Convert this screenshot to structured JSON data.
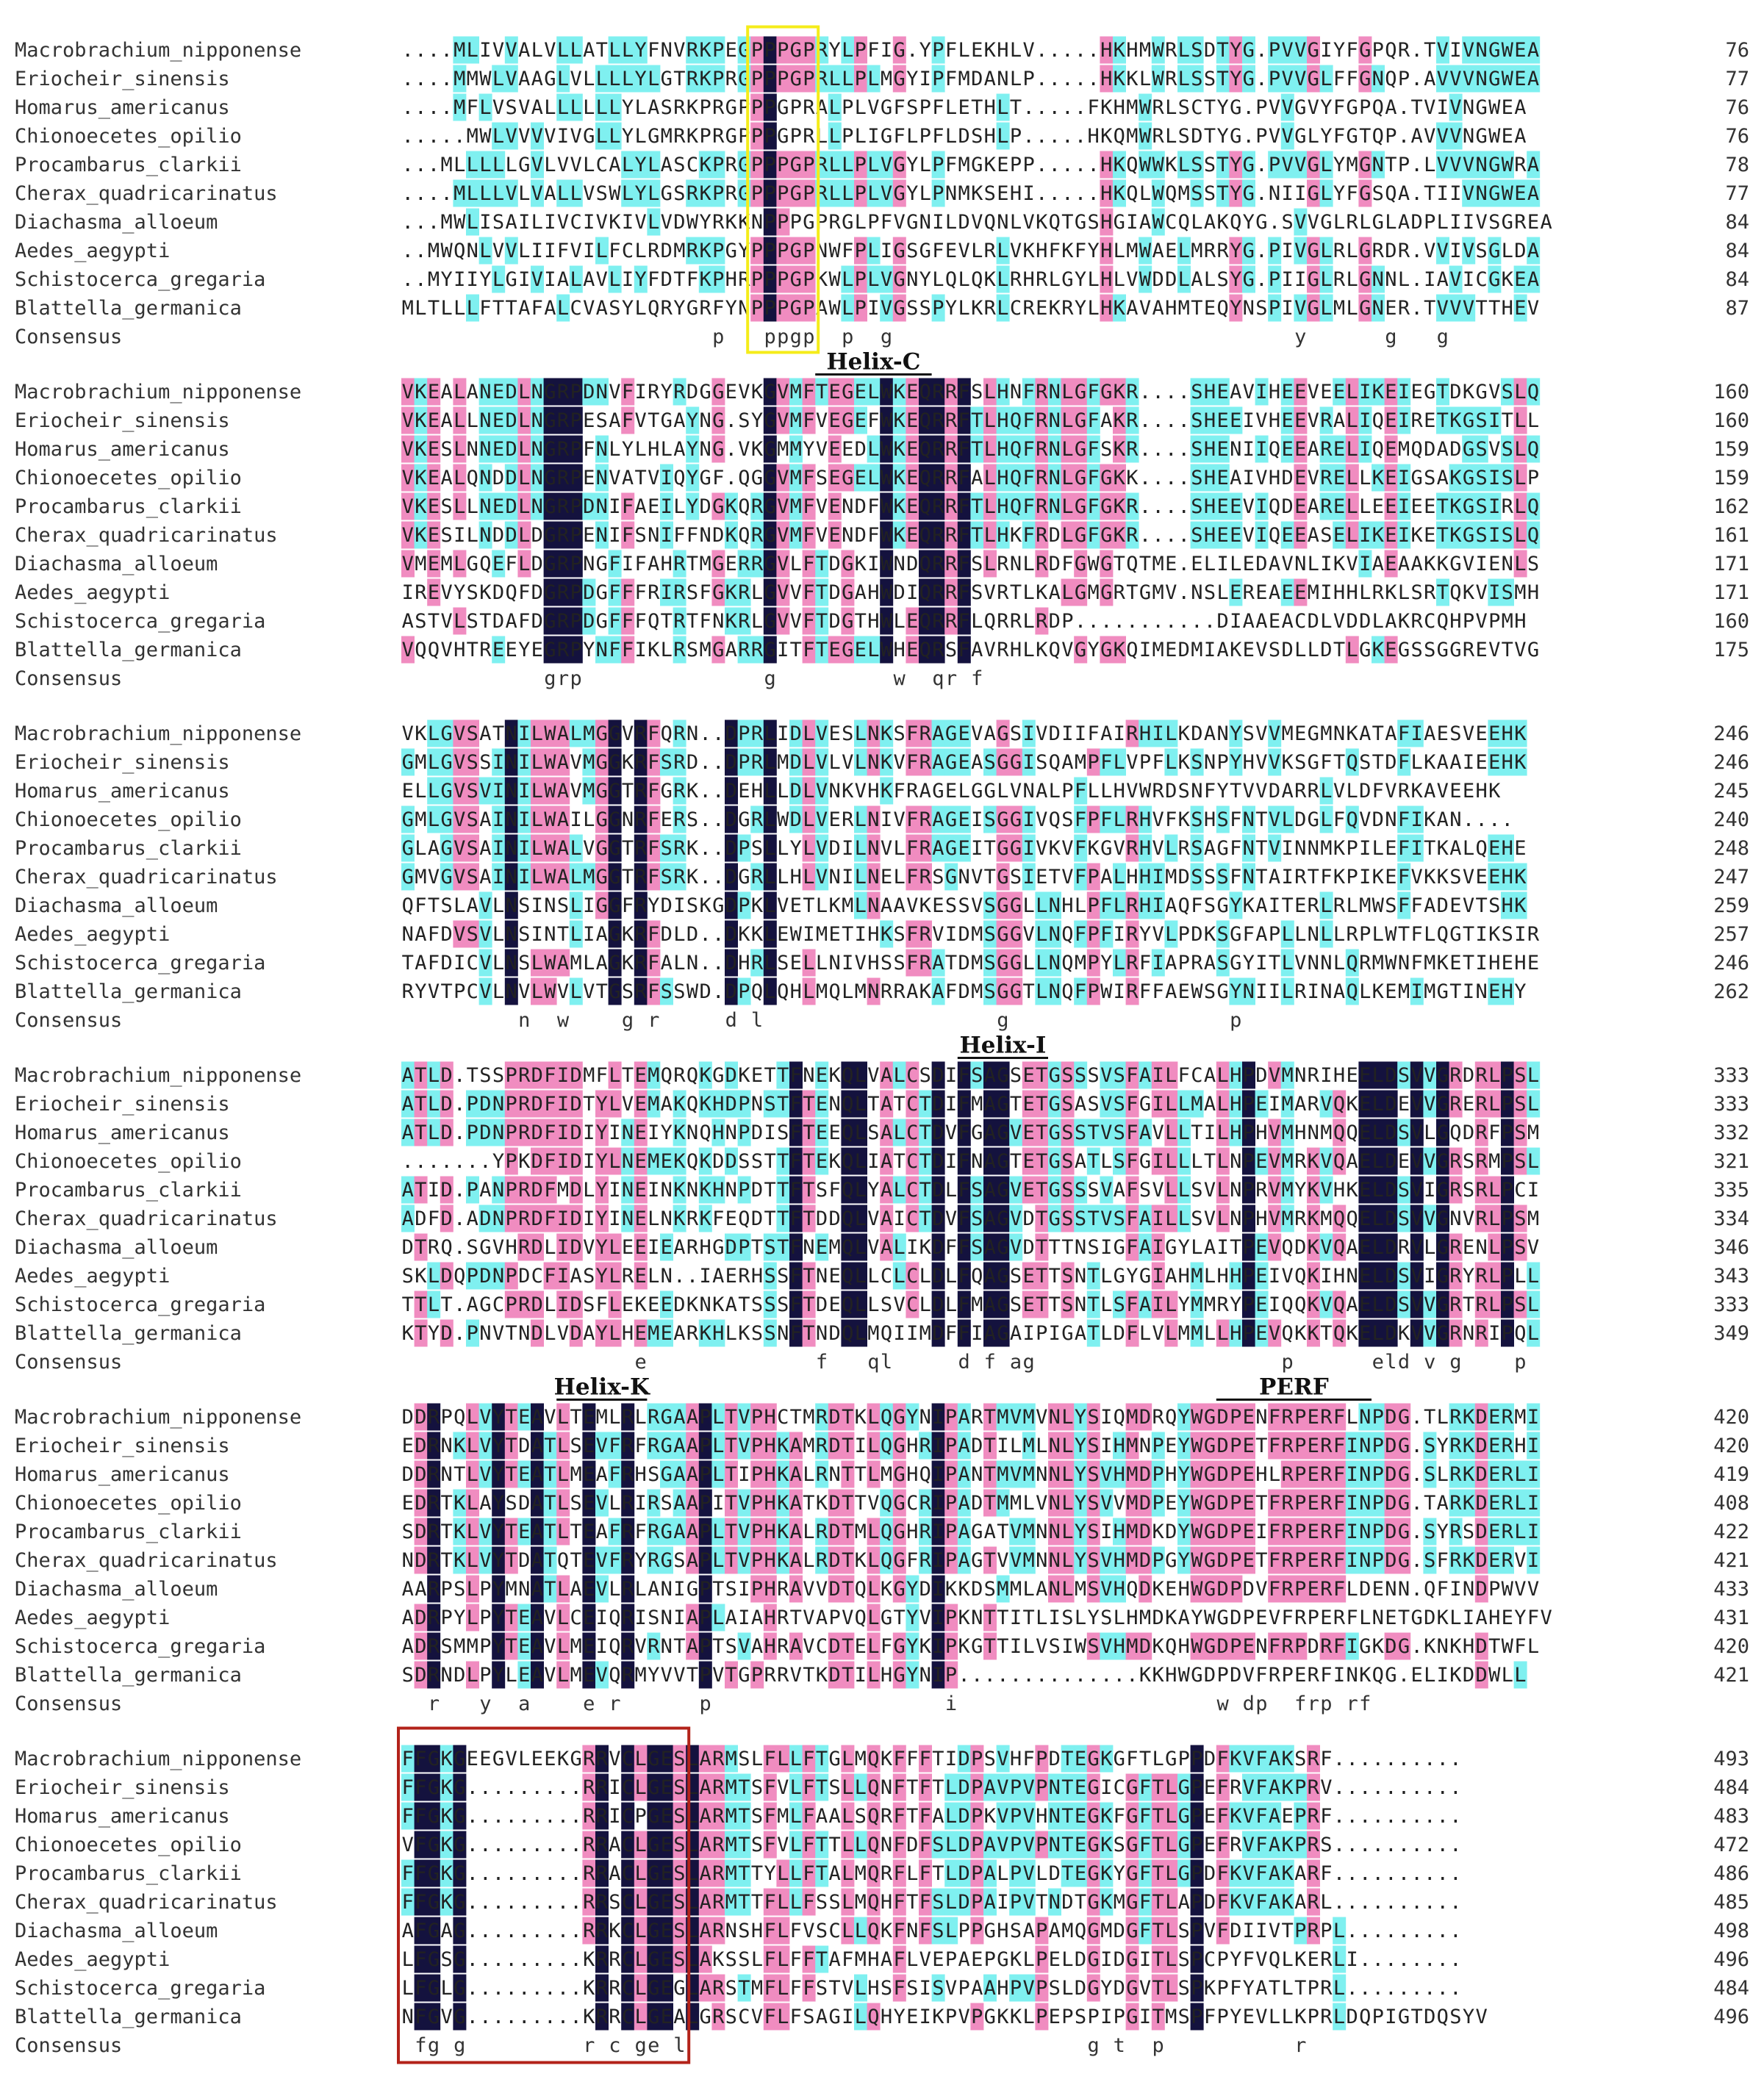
{
  "species": [
    "Macrobrachium_nipponense",
    "Eriocheir_sinensis",
    "Homarus_americanus",
    "Chionoecetes_opilio",
    "Procambarus_clarkii",
    "Cherax_quadricarinatus",
    "Diachasma_alloeum",
    "Aedes_aegypti",
    "Schistocerca_gregaria",
    "Blattella_germanica"
  ],
  "consensus_label": "Consensus",
  "colors": {
    "identical": "#14123e",
    "high": "#f08cc0",
    "medium": "#7ff0f0",
    "yellow_box": "#f5ec1a",
    "red_box": "#b3231a"
  },
  "blocks": [
    {
      "rows": [
        "....MLIVVALVLLATLLYFNVRKPEGPPPGPRYLPFIG.YPFLEKHLV.....HKHMWRLSDTYG.PVVGIYFGPQR.TVIVNGWEA",
        "....MMWLVAAGLVLLLLYLGTRKPRGPPPGPRLLPLMGYIPFMDANLP.....HKKLWRLSSTYG.PVVGLFFGNQP.AVVVNGWEA",
        "....MFLVSVALLLLLLYLASRKPRGPPPGPRALPLVGFSPFLETHLT.....FKHMWRLSCTYG.PVVGVYFGPQA.TVIVNGWEA",
        ".....MWLVVVVIVGLLYLGMRKPRGPPPGPRLLPLIGFLPFLDSHLP.....HKQMWRLSDTYG.PVVGLYFGTQP.AVVVNGWEA",
        "...MLLLLLGVLVVLCALYLASCKPRGPPPGPRLLPLVGYLPFMGKEPP.....HKQWWKLSSTYG.PVVGLYMGNTP.LVVVNGWRA",
        "....MLLLVLVALLVSWLYLGSRKPRGPPPGPRLLPLVGYLPNMKSEHI.....HKQLWQMSSTYG.NIIGLYFGSQA.TIIVNGWEA",
        "...MWLISAILIVCIVKIVLVDWYRKKNPPPGPRGLPFVGNILDVQNLVKQTGSHGIAWCQLAKQYG.SVVGLRLGLADPLIIVSGREA",
        "..MWQNLVVLIIFVILFCLRDMRKPGYPPPGPNWFPLIGSGFEVLRLVKHFKFYHLMWAELMRRYG.PIVGLRLGRDR.VVIVSGLDA",
        "..MYIIYLGIVIALAVLIYFDTFKPHRPPPGPKWLPLVGNYLQLQKLRHRLGYLHLVWDDLALSYG.PIIGLRLGNNL.IAVICGKEA",
        "MLTLLLFTTAFALCVASYLQRYGRFYNPPPGPAWLPIVGSSPYLKRLCREKRYLHKAVAHMTEQYNSPIVGLMLGNER.TVVVTTHEV"
      ],
      "consensus": "                        p   ppgp  p  g                               y      g   g          ",
      "ends": [
        76,
        77,
        76,
        76,
        78,
        77,
        84,
        84,
        84,
        87
      ]
    },
    {
      "rows": [
        "VKEALANEDLNGRPDNVFIRYRDGGEVKGVMFTEGELWKEQRRFSLHNFRNLGFGKR....SHEAVIHEEVEELIKEIEGTDKGVSLQ",
        "VKEALLNEDLNGRPESAFVTGAYNG.SYGVMFVEGEFWKEQRRFTLHQFRNLGFAKR....SHEEIVHEEVRALIQEIRETKGSITLL",
        "VKESLNNEDLNGRPFNLYLHLAYNG.VKGMMYVEEDLWKEQRRFTLHQFRNLGFSKR....SHENIIQEEARELIQEMQDADGSVSLQ",
        "VKEALQNDDLNGRPENVATVIQYGF.QGGVMFSEGELWKEQRRFALHQFRNLGFGKK....SHEAIVHDEVRELLKEIGSAKGSISLP",
        "VKESLLNEDLNGRPDNIFAEILYDGKQRGVMFVENDFWKEQRRFTLHQFRNLGFGKR....SHEEVIQDEARELLEEIEETKGSIRLQ",
        "VKESILNDDLDGRPENIFSNIFFNDKQRGVMFVENDFWKEQRRFTLHKFRDLGFGKR....SHEEVIQEEASELIKEIKETKGSISLQ",
        "VMEMLGQEFLDGRPNGFIFAHRTMGERRGVLFTDGKIWNDQRRFSLRNLRDFGWGTQTME.ELILEDAVNLIKVIAEAAKKGVIENLS",
        "IREVYSKDQFDGRPDGFFFRIRSFGKRLGVVFTDGAHWDIQRRFSVRTLKALGMGRTGMV.NSLEREAEEMIHHLRKLSRTQKVISMH",
        "ASTVLSTDAFDGRPDGFFFQTRTFNKRLGVVFTDGTHWLEQRRFLQRRLRDP...........DIAAEACDLVDDLAKRCQHPVPMH",
        "VQQVHTREEYEGRPYNFFIKLRSMGARRGITFTEGELWHEQRSFAVRHLKQVGYGKQIMEDMIAKEVSDLLDTLGKEGSSGGREVTVG"
      ],
      "consensus": "           grp              g         w  qr f                                          ",
      "ends": [
        160,
        160,
        159,
        159,
        162,
        161,
        171,
        171,
        160,
        175
      ]
    },
    {
      "rows": [
        "VKLGVSATNILWALMGGVRFQRN..DPRLIDLVESLNKSFRAGEVAGSIVDIIFAIRHILKDANYSVVMEGMNKATAFIAESVEEHK",
        "GMLGVSSINILWAVMGGKRFSRD..DPRLMDLVLVLNKVFRAGEASGGISQAMPFLVPFLKSNPYHVVKSGFTQSTDFLKAAIEEHK",
        "ELLGVSVINILWAVMGGTRFGRK..DEHLLDLVNKVHKFRAGELGGLVNALPFLLHVWRDSNFYTVVDARRLVLDFVRKAVEEHK",
        "GMLGVSAINILWAILGGNRFERS..DGRLWDLVERLNIVFRAGEISGGIVQSFPFLRHVFKSHSFNTVLDGLFQVDNFIKAN....",
        "GLAGVSAINILWALVGGTRFSRK..DPSLLYLVDILNVLFRAGEITGGIVKVFKGVRHVLRSAGFNTVINNMKPILEFITKALQEHE",
        "GMVGVSAINILWALMGGTRFSRK..DGRLLHLVNILNELFRSGNVTGSIETVFPALHHIMDSSSFNTAIRTFKPIKEFVKKSVEEHK",
        "QFTSLAVLNSINSLIGGFRYDISKGDPKLVETLKMLNAAVKESSVSGGLLNHLPFLRHIAQFSGYKAITERLRLMWSFFADEVTSHK",
        "NAFDVSVLNSINTLIAGKRFDLD..DKKLEWIMETIHKSFRVIDMSGGVLNQFPFIRYVLPDKSGFAPLLNLLRPLWTFLQGTIKSIR",
        "TAFDICVLNSLWAMLAGKRFALN..DHRLSELLNIVHSSFRATDMSGGLLNQMPYLRFIAPRASGYITLVNNLQRMWNFMKETIHEHE",
        "RYVTPCVLNVLWVLVTGSRFSSWD.DPQLQHLMQLMNRRAKAFDMSGGTLNQFPWIRFFAEWSGYNIILRINAQLKEMIMGTINEHY"
      ],
      "consensus": "         n  w    g r     d l                  g                 p                   ",
      "ends": [
        246,
        246,
        245,
        240,
        248,
        247,
        259,
        257,
        246,
        262
      ]
    },
    {
      "rows": [
        "ATLD.TSSPRDFIDMFLTEMQRQKGDKETTFNEKQLVALCSDIFSAGSETGSSSVSFAILFCALHPDVMNRIHEELDSVVGRDRLPSL",
        "ATLD.PDNPRDFIDTYLVEMAKQKHDPNSTFTENQLTATCTDIFMAGTETGSASVSFGILLMALHPEIMARVQKELDEVVGRERLPSL",
        "ATLD.PDNPRDFIDIYINEIYKNQHNPDISFTEEQLSALCTDVFGAGVETGSSTVSFAVLLTILHPHVMHNMQQELDSVLGQDRFPSM",
        ".......YPKDFIDIYLNEMEKQKDDSSTTFTEKQLIATCTDIFNAGTETGSATLSFGILLLTLNPEVMRKVQAELDEVVGRSRMPSL",
        "ATID.PANPRDFMDLYINEINKNKHNPDTTFTSFQLYALCTDLFSAGVETGSSSVAFSVLLSVLNPRVMYKVHKELDSVIGRSRLPCI",
        "ADFD.ADNPRDFIDIYINELNKRKFEQDTTFTDDQLVAICTDVFSAGVDTGSSTVSFAILLSVLNPHVMRKMQQELDSVVGNVRLPSM",
        "DTRQ.SGVHRDLIDVYLEEIEARHGDPTSTFNEMQLVALIKDFFSAGVDTTTNSIGFAIGYLAITPEVQDKVQAELDRVLGRENLPSV",
        "SKLDQPDNPDCFIASYLRELN..IAERHSSFTNEQLLCLCLDLFQAGSETTSNTLGYGIAHMLHHPEIVQKIHNELDSVIGRYRLPLL",
        "TTLT.AGCPRDLIDSFLEKEEDKNKATSSSFTDEQLLSVCLDLFMAGSETTSNTLSFAILYMMRYPEIQQKVQAELDSVVGRTRLPSL",
        "KTYD.PNVTNDLVDAYLHEMEARKHLKSSNFTNDQLMQIIMDFFIAGAIPIGATLDFLVLMMLLHPEVQKKTQKELDKVVGRNRIPQL"
      ],
      "consensus": "                  e             f   ql     d f ag                   p      eld v g    p  ",
      "ends": [
        333,
        333,
        332,
        321,
        335,
        334,
        346,
        343,
        333,
        349
      ]
    },
    {
      "rows": [
        "DDRPQLVYTEAVLTEMLRLRGAAPLTVPHCTMRDTKLQGYNIPARTMVMVNLYSIQMDRQYWGDPENFRPERFLNPDG.TLRKDERMI",
        "EDRNKLVYTDATLSEVFRFRGAAPLTVPHKAMRDTILQGHRIPADTILMLNLYSIHMNPEYWGDPETFRPERFINPDG.SYRKDERHI",
        "DDRNTLVYTEATLMEAFRHSGAAPLTIPHKALRNTTLMGHQIPANTMVMNNLYSVHMDPHYWGDPEHLRPERFINPDG.SLRKDERLI",
        "EDRTKLAYSDATLSEVLRIRSAAPITVPHKATKDTTVQGCRIPADTMMLVNLYSVVMDPEYWGDPETFRPERFINPDG.TARKDERLI",
        "SDRTKLVYTEATLTEAFRFRGAAPLTVPHKALRDTMLQGHRIPAGATVMNNLYSIHMDKDYWGDPEIFRPERFINPDG.SYRSDERLI",
        "NDRTKLVYTDATQTEVFRYRGSAPLTVPHKALRDTKLQGFRIPAGTVVMNNLYSVHMDPGYWGDPETFRPERFINPDG.SFRKDERVI",
        "AARPSLPYMNATLAEVLRLANIGPTSIPHRAVVDTQLKGYDIKKDSMMLANLMSVHQDKEHWGDPDVFRPERFLDENN.QFINDPWVV",
        "ADRPYLPYTEAVLCEIQRISNIAPLAIAHRTVAPVQLGTYVIPKNTTITLISLYSLHMDKAYWGDPEVFRPERFLNETGDKLIAHEYFV",
        "ADRSMMPYTEAVLMEIQRVRNTAPTSVAHRAVCDTELFGYKIPKGTTILVSIWSVHMDKQHWGDPENFRPDRFIGKDG.KNKHDTWFL",
        "SDRNDLPYLEAVLMEVQRMYVVTPVTGPRRVTKDTILHGYNIP..............KKHWGDPDVFRPERFINKQG.ELIKDDWLL"
      ],
      "consensus": "  r   y  a    e r      p                  i                    w dp  frp rf             ",
      "ends": [
        420,
        420,
        419,
        408,
        422,
        421,
        433,
        431,
        420,
        421
      ]
    },
    {
      "rows": [
        "FFGKGEEGVLEEKGRRVCLGESLARMSLFLLFTGLMQKFFFTIDPSVHFPDTEGKGFTLGPPDFKVFAKSRF..........",
        "FFGKG.........RRICLGESLARMTSFVLFTSLLQNFTFTLDPAVPVPNTEGICGFTLGPEFRVFAKPRV..........",
        "FFGKG.........RRICPGESLARMTSFMLFAALSQRFTFALDPKVPVHNTEGKFGFTLGPEFKVFAEPRF..........",
        "VFGKG.........RRACLGESLARMTSFVLFTTLLQNFDFSLDPAVPVPNTEGKSGFTLGPEFRVFAKPRS..........",
        "FFGKG.........RRACLGESLARMTTYLLFTALMQRFLFTLDPALPVLDTEGKYGFTLGPDFKVFAKARF..........",
        "FFGKG.........RRSCLGESLARMTTFLLFSSLMQHFTFSLDPAIPVTNDTGKMGFTLAPDFKVFAKARL..........",
        "AFGAG.........RRKCLGESLARNSHFLFVSCLLQKFNFSLPPGHSAPAMQGMDGFTLSPVFDIIVTPRPL.........",
        "LFGSG.........KRRCLGESLAKSSLFLFFTAFMHAFLVEPAEPGKLPELDGIDGITLSPCPYFVQLKERLI........",
        "LFGLG.........KRRCLGEGLARSTMFLFFSTVLHSFSISVPAAHPVPSLDGYDGVTLSPKPFYATLTPRL.........",
        "NFGVG.........KRRCLGEALGRSCVFLFSAGILQHYEIKPVPGKKLPEPSPIPGITMSPFPYEVLLKPRLDQPIGTDQSYV"
      ],
      "consensus": " fg g         r c ge l                               g t  p          r",
      "ends": [
        493,
        484,
        483,
        472,
        486,
        485,
        498,
        496,
        484,
        496
      ]
    }
  ],
  "annotations": [
    {
      "label": "Helix-C",
      "block": 1,
      "start": 32,
      "end": 40
    },
    {
      "label": "Helix-I",
      "block": 3,
      "start": 43,
      "end": 49
    },
    {
      "label": "Helix-K",
      "block": 4,
      "start": 12,
      "end": 18
    },
    {
      "label": "PERF",
      "block": 4,
      "start": 63,
      "end": 74
    }
  ],
  "boxes": [
    {
      "kind": "yellow",
      "block": 0,
      "start": 27,
      "end": 31
    },
    {
      "kind": "red",
      "block": 5,
      "start": 0,
      "end": 21
    }
  ]
}
